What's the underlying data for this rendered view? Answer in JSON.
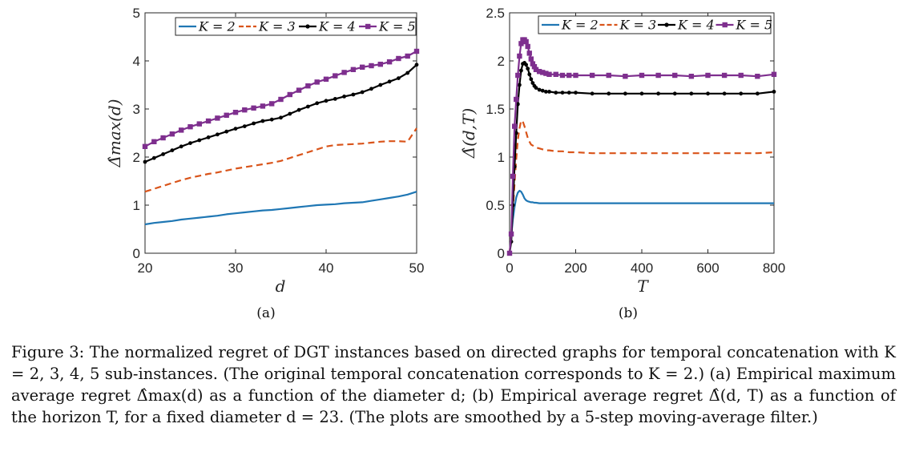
{
  "caption": "Figure 3: The normalized regret of DGT instances based on directed graphs for temporal concatenation with K = 2, 3, 4, 5 sub-instances. (The original temporal concatenation corresponds to K = 2.) (a) Empirical maximum average regret Δ̂max(d) as a function of the diameter d; (b) Empirical average regret Δ̂(d, T) as a function of the horizon T, for a fixed diameter d = 23. (The plots are smoothed by a 5-step moving-average filter.)",
  "colors": {
    "K2": "#1f77b4",
    "K3": "#d9541a",
    "K4": "#000000",
    "K5": "#7e2f8e"
  },
  "chart_data": [
    {
      "type": "line",
      "subtitle": "(a)",
      "xlabel": "d",
      "ylabel": "Δ̂max(d)",
      "xlim": [
        20,
        50
      ],
      "ylim": [
        0,
        5
      ],
      "xticks": [
        20,
        30,
        40,
        50
      ],
      "yticks": [
        0,
        1,
        2,
        3,
        4,
        5
      ],
      "grid": false,
      "legend": "top, horizontal",
      "x": [
        20,
        21,
        22,
        23,
        24,
        25,
        26,
        27,
        28,
        29,
        30,
        31,
        32,
        33,
        34,
        35,
        36,
        37,
        38,
        39,
        40,
        41,
        42,
        43,
        44,
        45,
        46,
        47,
        48,
        49,
        50
      ],
      "series": [
        {
          "name": "K = 2",
          "color": "#1f77b4",
          "style": "solid",
          "marker": "none",
          "values": [
            0.6,
            0.63,
            0.65,
            0.67,
            0.7,
            0.72,
            0.74,
            0.76,
            0.78,
            0.81,
            0.83,
            0.85,
            0.87,
            0.89,
            0.9,
            0.92,
            0.94,
            0.96,
            0.98,
            1.0,
            1.01,
            1.02,
            1.04,
            1.05,
            1.06,
            1.09,
            1.12,
            1.15,
            1.18,
            1.22,
            1.28
          ]
        },
        {
          "name": "K = 3",
          "color": "#d9541a",
          "style": "dashed",
          "marker": "none",
          "values": [
            1.28,
            1.34,
            1.4,
            1.46,
            1.52,
            1.57,
            1.61,
            1.65,
            1.68,
            1.72,
            1.76,
            1.79,
            1.82,
            1.85,
            1.88,
            1.92,
            1.98,
            2.04,
            2.1,
            2.16,
            2.22,
            2.25,
            2.26,
            2.27,
            2.28,
            2.3,
            2.32,
            2.33,
            2.33,
            2.32,
            2.6
          ]
        },
        {
          "name": "K = 4",
          "color": "#000000",
          "style": "solid",
          "marker": "dot",
          "values": [
            1.9,
            1.98,
            2.06,
            2.14,
            2.22,
            2.29,
            2.35,
            2.41,
            2.47,
            2.53,
            2.59,
            2.64,
            2.7,
            2.75,
            2.78,
            2.82,
            2.9,
            2.98,
            3.05,
            3.12,
            3.17,
            3.21,
            3.26,
            3.3,
            3.35,
            3.42,
            3.5,
            3.57,
            3.64,
            3.75,
            3.92
          ]
        },
        {
          "name": "K = 5",
          "color": "#7e2f8e",
          "style": "solid",
          "marker": "square",
          "values": [
            2.22,
            2.32,
            2.4,
            2.48,
            2.56,
            2.63,
            2.69,
            2.75,
            2.81,
            2.87,
            2.93,
            2.98,
            3.02,
            3.06,
            3.11,
            3.2,
            3.3,
            3.39,
            3.48,
            3.56,
            3.62,
            3.69,
            3.76,
            3.82,
            3.87,
            3.9,
            3.93,
            3.98,
            4.05,
            4.1,
            4.2
          ]
        }
      ]
    },
    {
      "type": "line",
      "subtitle": "(b)",
      "xlabel": "T",
      "ylabel": "Δ̂(d,T)",
      "xlim": [
        0,
        800
      ],
      "ylim": [
        0,
        2.5
      ],
      "xticks": [
        0,
        200,
        400,
        600,
        800
      ],
      "yticks": [
        0,
        0.5,
        1,
        1.5,
        2,
        2.5
      ],
      "grid": false,
      "legend": "top, horizontal",
      "x": [
        0,
        5,
        10,
        15,
        20,
        25,
        30,
        35,
        40,
        45,
        50,
        55,
        60,
        65,
        70,
        75,
        80,
        90,
        100,
        110,
        120,
        140,
        160,
        180,
        200,
        250,
        300,
        350,
        400,
        450,
        500,
        550,
        600,
        650,
        700,
        750,
        800
      ],
      "series": [
        {
          "name": "K = 2",
          "color": "#1f77b4",
          "style": "solid",
          "marker": "none",
          "values": [
            0,
            0.18,
            0.35,
            0.48,
            0.58,
            0.63,
            0.65,
            0.64,
            0.61,
            0.57,
            0.55,
            0.54,
            0.535,
            0.53,
            0.53,
            0.525,
            0.525,
            0.52,
            0.52,
            0.52,
            0.52,
            0.52,
            0.52,
            0.52,
            0.52,
            0.52,
            0.52,
            0.52,
            0.52,
            0.52,
            0.52,
            0.52,
            0.52,
            0.52,
            0.52,
            0.52,
            0.52
          ]
        },
        {
          "name": "K = 3",
          "color": "#d9541a",
          "style": "dashed",
          "marker": "none",
          "values": [
            0,
            0.2,
            0.45,
            0.72,
            0.98,
            1.18,
            1.3,
            1.38,
            1.37,
            1.32,
            1.26,
            1.2,
            1.16,
            1.13,
            1.12,
            1.11,
            1.1,
            1.09,
            1.08,
            1.07,
            1.07,
            1.06,
            1.06,
            1.05,
            1.05,
            1.04,
            1.04,
            1.04,
            1.04,
            1.04,
            1.04,
            1.04,
            1.04,
            1.04,
            1.04,
            1.04,
            1.05
          ]
        },
        {
          "name": "K = 4",
          "color": "#000000",
          "style": "solid",
          "marker": "dot",
          "values": [
            0,
            0.12,
            0.5,
            0.9,
            1.25,
            1.55,
            1.75,
            1.9,
            1.97,
            1.98,
            1.96,
            1.92,
            1.86,
            1.81,
            1.77,
            1.74,
            1.72,
            1.7,
            1.69,
            1.68,
            1.68,
            1.67,
            1.67,
            1.67,
            1.67,
            1.66,
            1.66,
            1.66,
            1.66,
            1.66,
            1.66,
            1.66,
            1.66,
            1.66,
            1.66,
            1.66,
            1.68
          ]
        },
        {
          "name": "K = 5",
          "color": "#7e2f8e",
          "style": "solid",
          "marker": "square",
          "values": [
            0,
            0.2,
            0.8,
            1.32,
            1.6,
            1.85,
            2.05,
            2.18,
            2.22,
            2.22,
            2.2,
            2.15,
            2.08,
            2.02,
            1.97,
            1.94,
            1.91,
            1.89,
            1.88,
            1.87,
            1.86,
            1.86,
            1.85,
            1.85,
            1.85,
            1.85,
            1.85,
            1.84,
            1.85,
            1.85,
            1.85,
            1.84,
            1.85,
            1.85,
            1.85,
            1.84,
            1.86
          ]
        }
      ]
    }
  ]
}
